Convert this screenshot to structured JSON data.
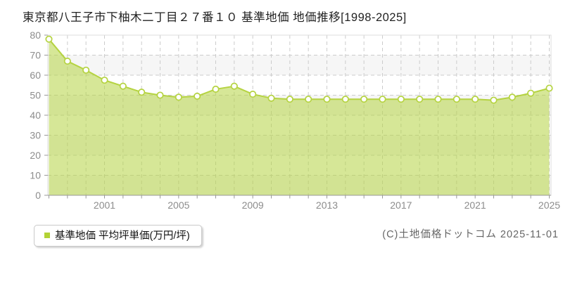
{
  "title": "東京都八王子市下柚木二丁目２７番１０ 基準地価 地価推移[1998-2025]",
  "legend": {
    "label": "基準地価 平均坪単価(万円/坪)",
    "marker_color": "#b2d235"
  },
  "footer": {
    "copyright": "(C)土地価格ドットコム 2025-11-01"
  },
  "chart_data": {
    "type": "area",
    "title": "東京都八王子市下柚木二丁目２７番１０ 基準地価 地価推移[1998-2025]",
    "xlabel": "",
    "ylabel": "平均坪単価(万円/坪)",
    "x": [
      1998,
      1999,
      2000,
      2001,
      2002,
      2003,
      2004,
      2005,
      2006,
      2007,
      2008,
      2009,
      2010,
      2011,
      2012,
      2013,
      2014,
      2015,
      2016,
      2017,
      2018,
      2019,
      2020,
      2021,
      2022,
      2023,
      2024,
      2025
    ],
    "series": [
      {
        "name": "基準地価 平均坪単価(万円/坪)",
        "values": [
          78,
          67,
          62.5,
          57.5,
          54.5,
          51.5,
          50,
          49,
          49.5,
          53,
          54.5,
          50.5,
          48.5,
          48,
          48,
          48,
          48,
          48,
          48,
          48,
          48,
          48,
          48,
          48,
          47.5,
          49,
          51,
          53.5
        ]
      }
    ],
    "ylim": [
      0,
      80
    ],
    "ytick_step": 10,
    "ytick_labels": [
      "0",
      "10",
      "20",
      "30",
      "40",
      "50",
      "60",
      "70",
      "80"
    ],
    "xtick_labels": [
      "2001",
      "2005",
      "2009",
      "2013",
      "2017",
      "2021",
      "2025"
    ],
    "grid": "dashed horizontal and vertical, alternating background bands",
    "legend_position": "bottom-left",
    "colors": {
      "line": "#b5d341",
      "area_fill": "rgba(181,211,65,0.55)",
      "marker_fill": "#ffffff",
      "marker_stroke": "#b5d341",
      "grid_line": "#cccccc",
      "band_alt": "#f6f6f6",
      "band_main": "#ffffff",
      "plot_border": "#dddddd",
      "axis": "#999999",
      "tick_label": "#8c8c8c"
    }
  }
}
